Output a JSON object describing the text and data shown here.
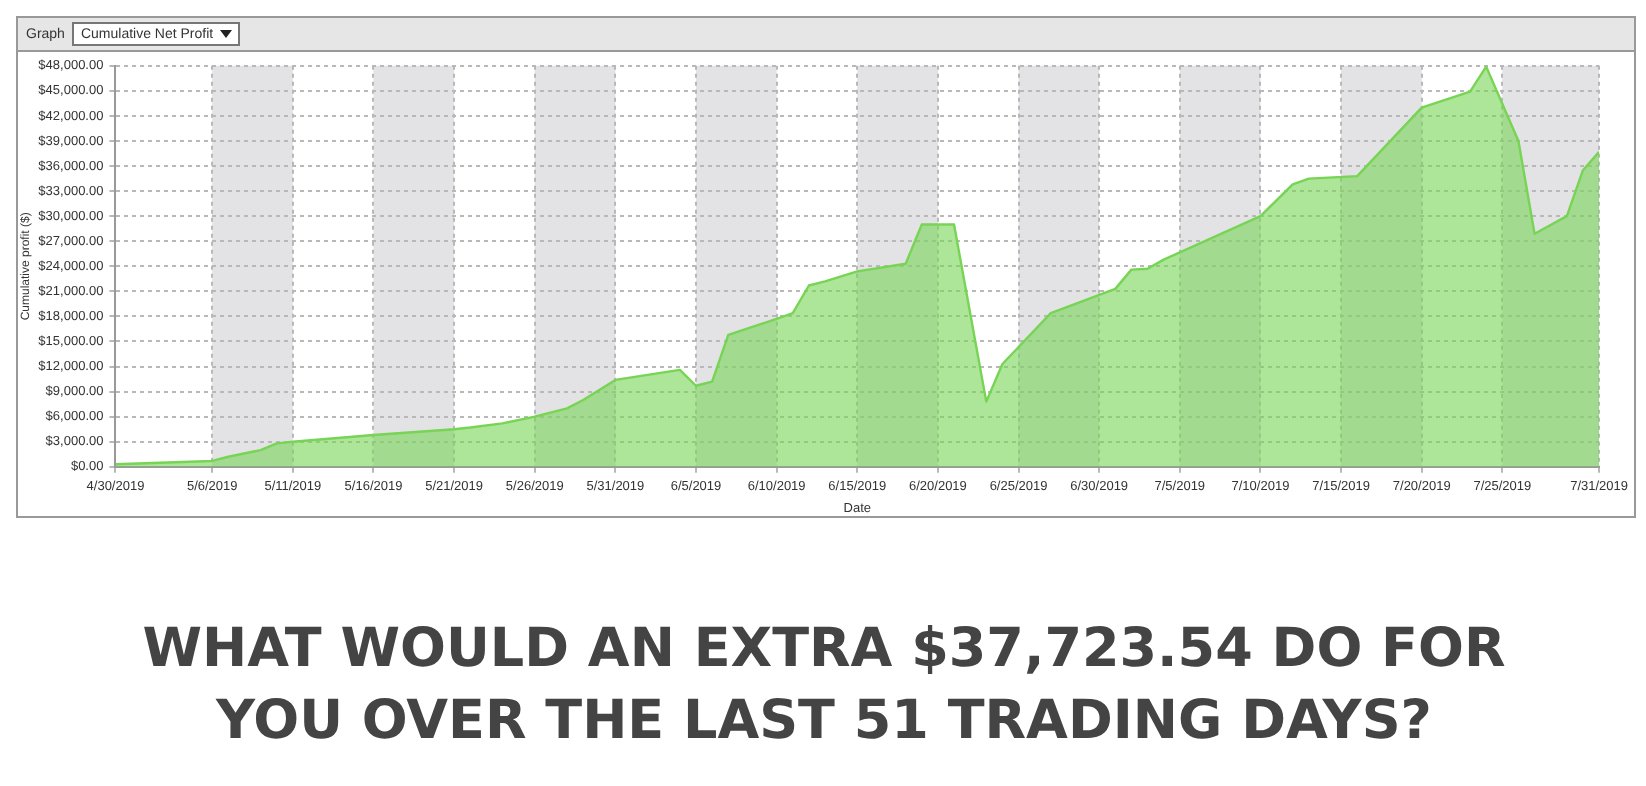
{
  "chart_data": {
    "type": "area",
    "title": "Cumulative Net Profit",
    "xlabel": "Date",
    "ylabel": "Cumulative profit ($)",
    "annotations": [
      "Graph",
      "WHAT WOULD AN EXTRA $37,723.54 DO FOR YOU OVER THE LAST 51 TRADING DAYS?"
    ],
    "x": [
      "2019-04-30",
      "2019-05-06",
      "2019-05-07",
      "2019-05-09",
      "2019-05-10",
      "2019-05-11",
      "2019-05-16",
      "2019-05-21",
      "2019-05-22",
      "2019-05-24",
      "2019-05-26",
      "2019-05-28",
      "2019-05-29",
      "2019-05-31",
      "2019-06-04",
      "2019-06-05",
      "2019-06-06",
      "2019-06-07",
      "2019-06-10",
      "2019-06-11",
      "2019-06-12",
      "2019-06-13",
      "2019-06-15",
      "2019-06-18",
      "2019-06-19",
      "2019-06-21",
      "2019-06-23",
      "2019-06-24",
      "2019-06-27",
      "2019-07-01",
      "2019-07-02",
      "2019-07-03",
      "2019-07-04",
      "2019-07-10",
      "2019-07-12",
      "2019-07-13",
      "2019-07-16",
      "2019-07-20",
      "2019-07-23",
      "2019-07-24",
      "2019-07-26",
      "2019-07-27",
      "2019-07-29",
      "2019-07-30",
      "2019-07-31"
    ],
    "series": [
      {
        "color": "#77d455",
        "values": [
          300,
          700,
          1200,
          2000,
          2800,
          3000,
          3800,
          4500,
          4700,
          5200,
          6000,
          7000,
          8000,
          10400,
          11600,
          9700,
          10200,
          15800,
          17700,
          18400,
          21700,
          22200,
          23400,
          24300,
          29000,
          29000,
          7800,
          12300,
          18400,
          21300,
          23600,
          23700,
          24800,
          30000,
          33800,
          34500,
          34800,
          43000,
          44900,
          47900,
          39000,
          27900,
          30000,
          35500,
          37700
        ]
      }
    ],
    "xlim": [
      "2019-04-30",
      "2019-07-31"
    ],
    "xticks": [
      {
        "value": "2019-04-30",
        "label": "4/30/2019"
      },
      {
        "value": "2019-05-06",
        "label": "5/6/2019"
      },
      {
        "value": "2019-05-11",
        "label": "5/11/2019"
      },
      {
        "value": "2019-05-16",
        "label": "5/16/2019"
      },
      {
        "value": "2019-05-21",
        "label": "5/21/2019"
      },
      {
        "value": "2019-05-26",
        "label": "5/26/2019"
      },
      {
        "value": "2019-05-31",
        "label": "5/31/2019"
      },
      {
        "value": "2019-06-05",
        "label": "6/5/2019"
      },
      {
        "value": "2019-06-10",
        "label": "6/10/2019"
      },
      {
        "value": "2019-06-15",
        "label": "6/15/2019"
      },
      {
        "value": "2019-06-20",
        "label": "6/20/2019"
      },
      {
        "value": "2019-06-25",
        "label": "6/25/2019"
      },
      {
        "value": "2019-06-30",
        "label": "6/30/2019"
      },
      {
        "value": "2019-07-05",
        "label": "7/5/2019"
      },
      {
        "value": "2019-07-10",
        "label": "7/10/2019"
      },
      {
        "value": "2019-07-15",
        "label": "7/15/2019"
      },
      {
        "value": "2019-07-20",
        "label": "7/20/2019"
      },
      {
        "value": "2019-07-25",
        "label": "7/25/2019"
      },
      {
        "value": "2019-07-31",
        "label": "7/31/2019"
      }
    ],
    "ylim": [
      0,
      48000
    ],
    "yticks": [
      {
        "value": 0,
        "label": "$0.00"
      },
      {
        "value": 3000,
        "label": "$3,000.00"
      },
      {
        "value": 6000,
        "label": "$6,000.00"
      },
      {
        "value": 9000,
        "label": "$9,000.00"
      },
      {
        "value": 12000,
        "label": "$12,000.00"
      },
      {
        "value": 15000,
        "label": "$15,000.00"
      },
      {
        "value": 18000,
        "label": "$18,000.00"
      },
      {
        "value": 21000,
        "label": "$21,000.00"
      },
      {
        "value": 24000,
        "label": "$24,000.00"
      },
      {
        "value": 27000,
        "label": "$27,000.00"
      },
      {
        "value": 30000,
        "label": "$30,000.00"
      },
      {
        "value": 33000,
        "label": "$33,000.00"
      },
      {
        "value": 36000,
        "label": "$36,000.00"
      },
      {
        "value": 39000,
        "label": "$39,000.00"
      },
      {
        "value": 42000,
        "label": "$42,000.00"
      },
      {
        "value": 45000,
        "label": "$45,000.00"
      },
      {
        "value": 48000,
        "label": "$48,000.00"
      }
    ],
    "grid": true
  }
}
